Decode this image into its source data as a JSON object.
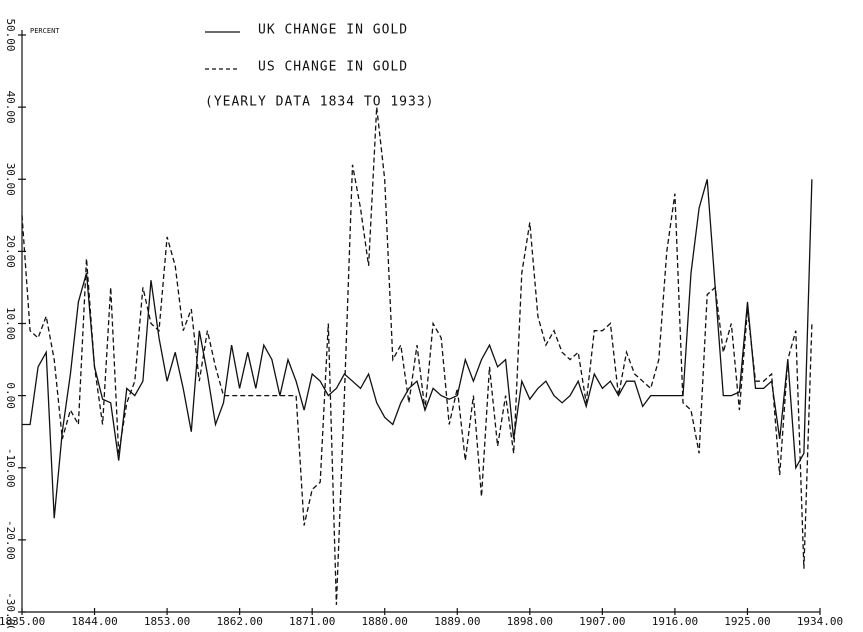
{
  "chart_data": {
    "type": "line",
    "ylabel": "PERCENT",
    "annotation": "(YEARLY DATA 1834 TO 1933)",
    "x": [
      1835,
      1836,
      1837,
      1838,
      1839,
      1840,
      1841,
      1842,
      1843,
      1844,
      1845,
      1846,
      1847,
      1848,
      1849,
      1850,
      1851,
      1852,
      1853,
      1854,
      1855,
      1856,
      1857,
      1858,
      1859,
      1860,
      1861,
      1862,
      1863,
      1864,
      1865,
      1866,
      1867,
      1868,
      1869,
      1870,
      1871,
      1872,
      1873,
      1874,
      1875,
      1876,
      1877,
      1878,
      1879,
      1880,
      1881,
      1882,
      1883,
      1884,
      1885,
      1886,
      1887,
      1888,
      1889,
      1890,
      1891,
      1892,
      1893,
      1894,
      1895,
      1896,
      1897,
      1898,
      1899,
      1900,
      1901,
      1902,
      1903,
      1904,
      1905,
      1906,
      1907,
      1908,
      1909,
      1910,
      1911,
      1912,
      1913,
      1914,
      1915,
      1916,
      1917,
      1918,
      1919,
      1920,
      1921,
      1922,
      1923,
      1924,
      1925,
      1926,
      1927,
      1928,
      1929,
      1930,
      1931,
      1932,
      1933
    ],
    "series": [
      {
        "name": "UK CHANGE IN GOLD",
        "color": "#111111",
        "line_style": "solid",
        "values": [
          -4,
          -4,
          4,
          6,
          -17,
          -5,
          3,
          13,
          17,
          4,
          -0.5,
          -1,
          -9,
          1,
          0,
          2,
          16,
          8,
          2,
          6,
          1,
          -5,
          9,
          3,
          -4,
          -1,
          7,
          1,
          6,
          1,
          7,
          5,
          0,
          5,
          2,
          -2,
          3,
          2,
          0,
          1,
          3,
          2,
          1,
          3,
          -1,
          -3,
          -4,
          -1,
          1,
          2,
          -2,
          1,
          0,
          -0.5,
          0,
          5,
          2,
          5,
          7,
          4,
          5,
          -6,
          2,
          -0.5,
          1,
          2,
          0,
          -1,
          0,
          2,
          -1.5,
          3,
          1,
          2,
          0,
          2,
          2,
          -1.5,
          0,
          0,
          0,
          0,
          0,
          17,
          26,
          30,
          15,
          0,
          0,
          0.5,
          13,
          1,
          1,
          2,
          -6,
          5,
          -10,
          -8,
          30
        ]
      },
      {
        "name": "US CHANGE IN GOLD",
        "color": "#111111",
        "line_style": "dashed",
        "values": [
          25,
          9,
          8,
          11,
          5,
          -6,
          -2,
          -4,
          19,
          4,
          -4,
          15,
          -8,
          -1,
          2,
          15,
          10,
          9,
          22,
          18,
          9,
          12,
          2,
          9,
          4,
          0,
          0,
          0,
          0,
          0,
          0,
          0,
          0,
          0,
          0,
          -18,
          -13,
          -12,
          10,
          -29,
          0,
          32,
          26,
          18,
          40,
          30,
          5,
          7,
          -1,
          7,
          -2,
          10,
          8,
          -4,
          1,
          -9,
          0,
          -14,
          4,
          -7,
          0,
          -8,
          17,
          24,
          11,
          7,
          9,
          6,
          5,
          6,
          -1,
          9,
          9,
          10,
          0,
          6,
          3,
          2,
          1,
          5,
          20,
          28,
          -1,
          -2,
          -8,
          14,
          15,
          6,
          10,
          -2,
          12,
          2,
          2,
          3,
          -11,
          5,
          9,
          -24,
          10
        ]
      }
    ],
    "xlim": [
      1835,
      1934
    ],
    "xticks": [
      {
        "value": 1835,
        "label": "1835.00"
      },
      {
        "value": 1844,
        "label": "1844.00"
      },
      {
        "value": 1853,
        "label": "1853.00"
      },
      {
        "value": 1862,
        "label": "1862.00"
      },
      {
        "value": 1871,
        "label": "1871.00"
      },
      {
        "value": 1880,
        "label": "1880.00"
      },
      {
        "value": 1889,
        "label": "1889.00"
      },
      {
        "value": 1898,
        "label": "1898.00"
      },
      {
        "value": 1907,
        "label": "1907.00"
      },
      {
        "value": 1916,
        "label": "1916.00"
      },
      {
        "value": 1925,
        "label": "1925.00"
      },
      {
        "value": 1934,
        "label": "1934.00"
      }
    ],
    "ylim": [
      -30,
      50
    ],
    "yticks": [
      {
        "value": -30,
        "label": "-30.00"
      },
      {
        "value": -20,
        "label": "-20.00"
      },
      {
        "value": -10,
        "label": "-10.00"
      },
      {
        "value": 0,
        "label": "0.00"
      },
      {
        "value": 10,
        "label": "10.00"
      },
      {
        "value": 20,
        "label": "20.00"
      },
      {
        "value": 30,
        "label": "30.00"
      },
      {
        "value": 40,
        "label": "40.00"
      },
      {
        "value": 50,
        "label": "50.00"
      }
    ],
    "grid": false
  }
}
